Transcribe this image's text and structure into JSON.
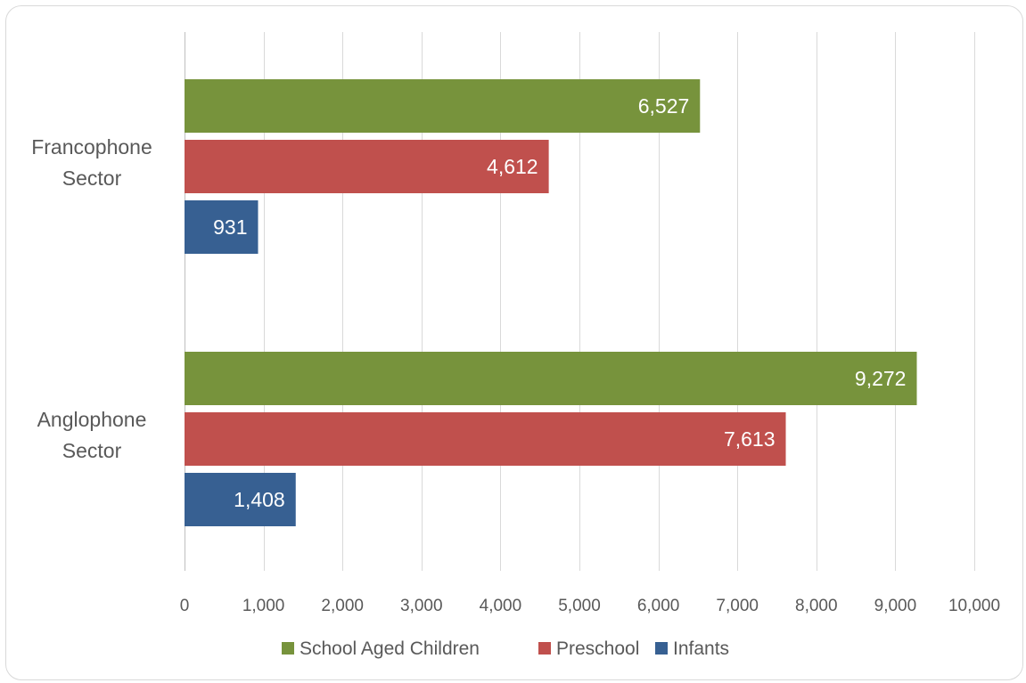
{
  "chart_data": {
    "type": "bar",
    "orientation": "horizontal",
    "categories": [
      [
        "Francophone",
        "Sector"
      ],
      [
        "Anglophone",
        "Sector"
      ]
    ],
    "series": [
      {
        "name": "School Aged Children",
        "color": "#77933c",
        "values": [
          6527,
          9272
        ],
        "labels": [
          "6,527",
          "9,272"
        ]
      },
      {
        "name": "Preschool",
        "color": "#c0504d",
        "values": [
          4612,
          7613
        ],
        "labels": [
          "4,612",
          "7,613"
        ]
      },
      {
        "name": "Infants",
        "color": "#376092",
        "values": [
          931,
          1408
        ],
        "labels": [
          "931",
          "1,408"
        ]
      }
    ],
    "xlim": [
      0,
      10000
    ],
    "x_ticks": [
      0,
      1000,
      2000,
      3000,
      4000,
      5000,
      6000,
      7000,
      8000,
      9000,
      10000
    ],
    "x_tick_labels": [
      "0",
      "1,000",
      "2,000",
      "3,000",
      "4,000",
      "5,000",
      "6,000",
      "7,000",
      "8,000",
      "9,000",
      "10,000"
    ],
    "grid": true,
    "legend_position": "bottom"
  }
}
